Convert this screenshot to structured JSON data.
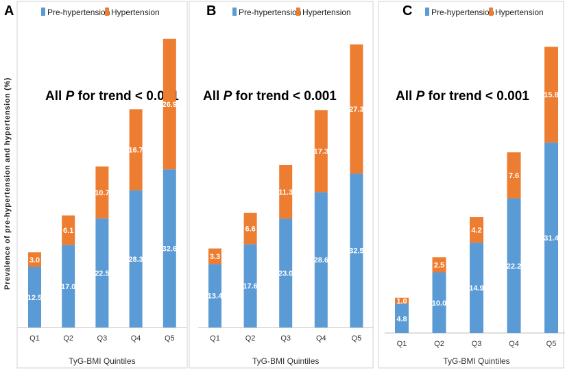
{
  "y_axis_label": "Prevalence of pre-hypertension and hypertension (%)",
  "colors": {
    "pre_hypertension": "#5B9BD5",
    "hypertension": "#ED7D31",
    "panel_border": "#d0d0d0"
  },
  "chart_data": [
    {
      "type": "bar",
      "stacked": true,
      "panel_label": "A",
      "title": "All P for trend < 0.001",
      "title_parts": {
        "pre": "All ",
        "italic": "P",
        "post": " for trend < 0.001"
      },
      "legend": [
        "Pre-hypertension",
        "Hypertension"
      ],
      "xlabel": "TyG-BMI Quintiles",
      "ylabel": "Prevalence of pre-hypertension and hypertension (%)",
      "categories": [
        "Q1",
        "Q2",
        "Q3",
        "Q4",
        "Q5"
      ],
      "series": [
        {
          "name": "Pre-hypertension",
          "values": [
            12.5,
            17.0,
            22.5,
            28.3,
            32.6
          ],
          "labels": [
            "12.5",
            "17.0",
            "22.5",
            "28.3",
            "32.6"
          ]
        },
        {
          "name": "Hypertension",
          "values": [
            3.0,
            6.1,
            10.7,
            16.7,
            26.9
          ],
          "labels": [
            "3.0",
            "6.1",
            "10.7",
            "16.7",
            "26.9"
          ]
        }
      ],
      "ylim": [
        0,
        70
      ]
    },
    {
      "type": "bar",
      "stacked": true,
      "panel_label": "B",
      "title": "All P for trend < 0.001",
      "title_parts": {
        "pre": "All ",
        "italic": "P",
        "post": " for trend < 0.001"
      },
      "legend": [
        "Pre-hypertension",
        "Hypertension"
      ],
      "xlabel": "TyG-BMI Quintiles",
      "categories": [
        "Q1",
        "Q2",
        "Q3",
        "Q4",
        "Q5"
      ],
      "series": [
        {
          "name": "Pre-hypertension",
          "values": [
            13.4,
            17.6,
            23.0,
            28.6,
            32.5
          ],
          "labels": [
            "13.4",
            "17.6",
            "23.0",
            "28.6",
            "32.5"
          ]
        },
        {
          "name": "Hypertension",
          "values": [
            3.3,
            6.6,
            11.3,
            17.3,
            27.3
          ],
          "labels": [
            "3.3",
            "6.6",
            "11.3",
            "17.3",
            "27.3"
          ]
        }
      ],
      "ylim": [
        0,
        70
      ]
    },
    {
      "type": "bar",
      "stacked": true,
      "panel_label": "C",
      "title": "All P for trend < 0.001",
      "title_parts": {
        "pre": "All ",
        "italic": "P",
        "post": " for trend < 0.001"
      },
      "legend": [
        "Pre-hypertension",
        "Hypertension"
      ],
      "xlabel": "TyG-BMI Quintiles",
      "categories": [
        "Q1",
        "Q2",
        "Q3",
        "Q4",
        "Q5"
      ],
      "series": [
        {
          "name": "Pre-hypertension",
          "values": [
            4.8,
            10.0,
            14.9,
            22.2,
            31.4
          ],
          "labels": [
            "4.8",
            "10.0",
            "14.9",
            "22.2",
            "31.4"
          ]
        },
        {
          "name": "Hypertension",
          "values": [
            1.0,
            2.5,
            4.2,
            7.6,
            15.8
          ],
          "labels": [
            "1.0",
            "2.5",
            "4.2",
            "7.6",
            "15.8"
          ]
        }
      ],
      "ylim": [
        0,
        50
      ]
    }
  ]
}
